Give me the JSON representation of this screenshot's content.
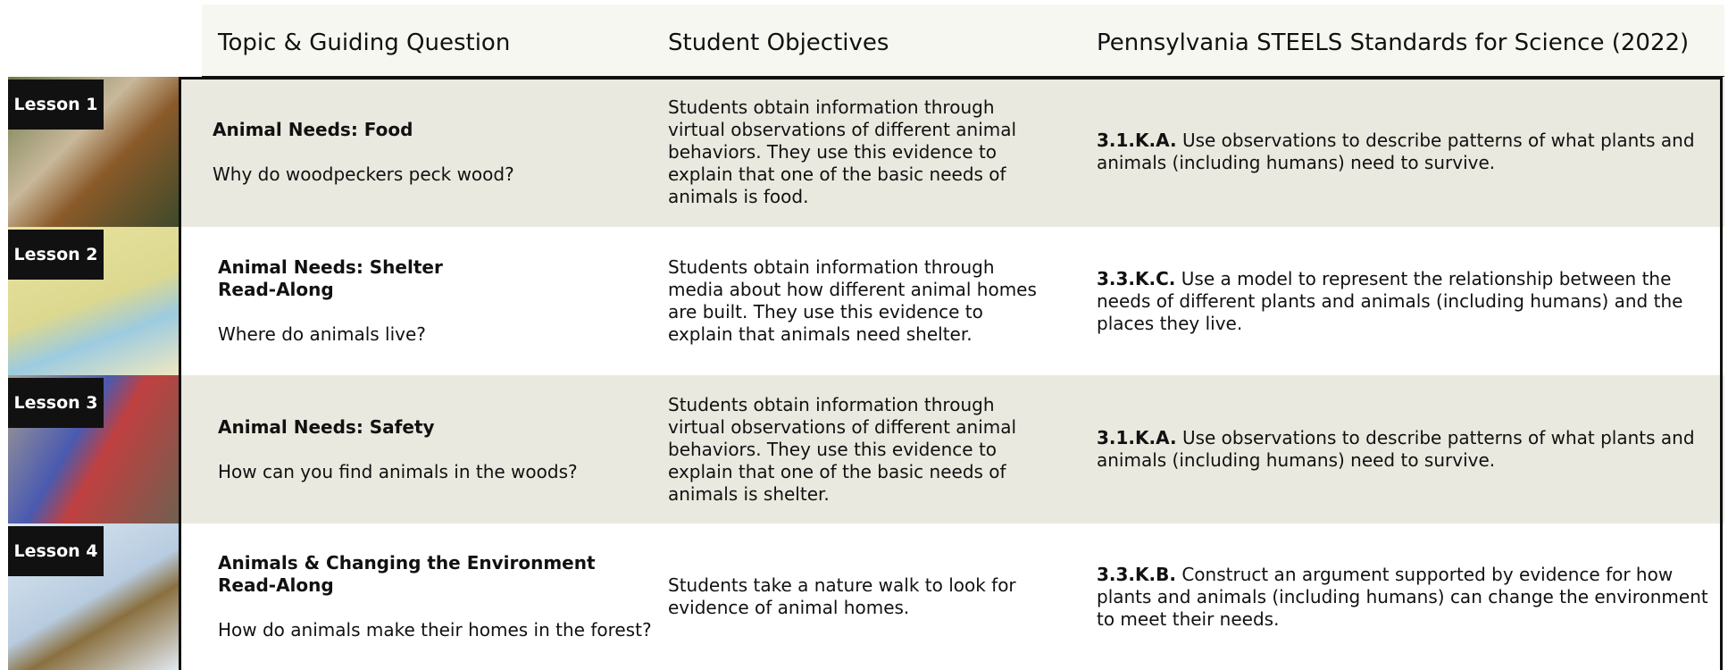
{
  "header": {
    "columns": [
      "Topic & Guiding Question",
      "Student Objectives",
      "Pennsylvania STEELS Standards for Science (2022)"
    ]
  },
  "rows": [
    {
      "lesson": "Lesson 1",
      "title_lines": [
        "Animal Needs: Food"
      ],
      "question": "Why do woodpeckers peck wood?",
      "objective": "Students obtain information through virtual observations of different animal behaviors. They use this evidence to explain that one of the basic needs of animals is food.",
      "standard_code": "3.1.K.A.",
      "standard_text": "Use observations to describe patterns of what plants and animals (including humans) need to survive."
    },
    {
      "lesson": "Lesson 2",
      "title_lines": [
        "Animal Needs: Shelter",
        "Read-Along"
      ],
      "question": "Where do animals live?",
      "objective": "Students obtain information through media about how different animal homes are built. They use this evidence to explain that animals need shelter.",
      "standard_code": "3.3.K.C.",
      "standard_text": "Use a model to represent the relationship between the needs of different plants and animals (including humans) and the places they live."
    },
    {
      "lesson": "Lesson 3",
      "title_lines": [
        "Animal Needs: Safety"
      ],
      "question": "How can you find animals in the woods?",
      "objective": "Students obtain information through virtual observations of different animal behaviors. They use this evidence to explain that one of the basic needs of animals is shelter.",
      "standard_code": "3.1.K.A.",
      "standard_text": "Use observations to describe patterns of what plants and animals (including humans) need to survive."
    },
    {
      "lesson": "Lesson 4",
      "title_lines": [
        "Animals & Changing the Environment",
        "Read-Along"
      ],
      "question": "How do animals make their homes in the forest?",
      "objective": "Students take a nature walk to look for evidence of animal homes.",
      "standard_code": "3.3.K.B.",
      "standard_text": "Construct an argument supported by evidence for how plants and animals (including humans) can change the environment to meet their needs."
    }
  ]
}
